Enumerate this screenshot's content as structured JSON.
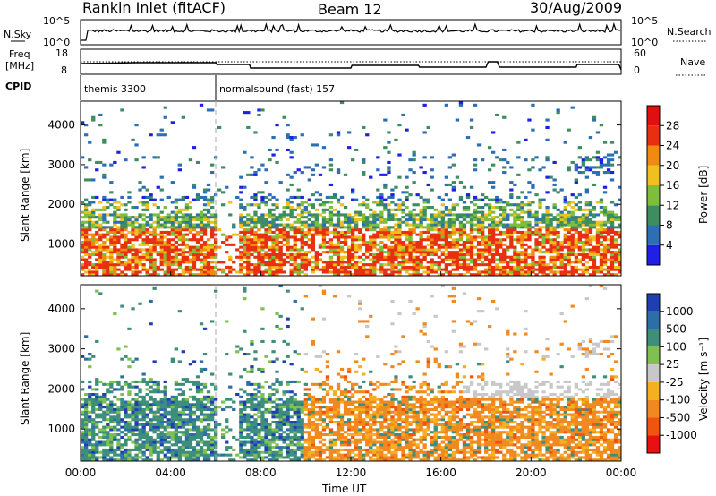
{
  "header": {
    "station": "Rankin Inlet (fitACF)",
    "beam": "Beam 12",
    "date": "30/Aug/2009"
  },
  "side_labels": {
    "nsky": "N.Sky",
    "nsky_top": "10^5",
    "nsky_bottom": "10^0",
    "nsearch": "N.Search",
    "nsearch_top": "10^5",
    "nsearch_bottom": "10^0",
    "freq_line1": "Freq",
    "freq_line2": "[MHz]",
    "freq_top": "18",
    "freq_bottom": "8",
    "nave": "Nave",
    "nave_top": "60",
    "nave_bottom": "0",
    "cpid": "CPID"
  },
  "cpid_segments": [
    {
      "label": "themis 3300",
      "start_hour": 0
    },
    {
      "label": "normalsound (fast) 157",
      "start_hour": 6
    }
  ],
  "chart_data": [
    {
      "type": "heatmap",
      "name": "power",
      "ylabel": "Slant Range [km]",
      "xlabel": "Time UT",
      "x_ticks": [
        "00:00",
        "04:00",
        "08:00",
        "12:00",
        "16:00",
        "20:00",
        "00:00"
      ],
      "x_range_hours": [
        0,
        24
      ],
      "y_ticks": [
        1000,
        2000,
        3000,
        4000
      ],
      "y_range": [
        200,
        4600
      ],
      "colorbar": {
        "label": "Power [dB]",
        "ticks": [
          4,
          8,
          12,
          16,
          20,
          24,
          28
        ],
        "colors": [
          "#1f1fe6",
          "#2c6fb5",
          "#3e8d60",
          "#7dbf3a",
          "#f0c020",
          "#f08a10",
          "#e83010",
          "#e01010"
        ]
      }
    },
    {
      "type": "heatmap",
      "name": "velocity",
      "ylabel": "Slant Range [km]",
      "xlabel": "Time UT",
      "x_ticks": [
        "00:00",
        "04:00",
        "08:00",
        "12:00",
        "16:00",
        "20:00",
        "00:00"
      ],
      "x_range_hours": [
        0,
        24
      ],
      "y_ticks": [
        1000,
        2000,
        3000,
        4000
      ],
      "y_range": [
        200,
        4600
      ],
      "colorbar": {
        "label": "Velocity [m s⁻¹]",
        "ticks": [
          1000,
          500,
          100,
          25,
          -25,
          -100,
          -500,
          -1000
        ],
        "colors": [
          "#1f3fb0",
          "#2e6ea8",
          "#3d8f7a",
          "#7fc050",
          "#c8c8c8",
          "#f4b020",
          "#f08a20",
          "#ee5510",
          "#e81010"
        ]
      }
    }
  ],
  "bottom_axis": {
    "label": "Time UT"
  }
}
